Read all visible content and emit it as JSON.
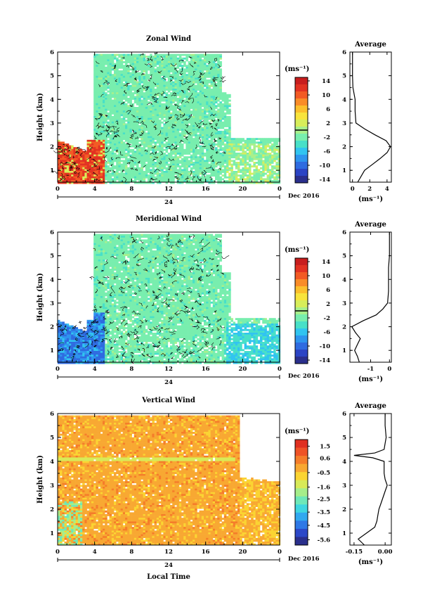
{
  "chart_data": [
    {
      "type": "heatmap",
      "title": "Zonal Wind",
      "xlabel": "",
      "ylabel": "Height (km)",
      "xlim": [
        0,
        24
      ],
      "ylim": [
        0.5,
        6
      ],
      "xticks": [
        "0",
        "4",
        "8",
        "12",
        "16",
        "20",
        "0"
      ],
      "yticks": [
        "1",
        "2",
        "3",
        "4",
        "5",
        "6"
      ],
      "date_axis": {
        "mid_label": "24",
        "right_label": "Dec 2016"
      },
      "colorbar": {
        "unit": "(ms⁻¹)",
        "range": [
          -15,
          15
        ],
        "ticks": [
          "14",
          "10",
          "6",
          "2",
          "-2",
          "-6",
          "-10",
          "-14"
        ],
        "tick_values": [
          14,
          10,
          6,
          2,
          -2,
          -6,
          -10,
          -14
        ]
      },
      "profile": {
        "title": "Average",
        "xlabel": "(ms⁻¹)",
        "xlim": [
          -0.3,
          4.5
        ],
        "xticks": [
          "0",
          "2",
          "4"
        ],
        "xtick_values": [
          0,
          2,
          4
        ],
        "yticks": [
          "1",
          "2",
          "3",
          "4",
          "5",
          "6"
        ],
        "height": [
          0.5,
          0.75,
          1.0,
          1.25,
          1.5,
          1.75,
          2.0,
          2.25,
          2.5,
          2.75,
          3.0,
          3.5,
          4.0,
          4.5,
          5.0,
          5.5,
          6.0
        ],
        "value": [
          0.6,
          1.0,
          1.4,
          2.3,
          3.2,
          4.0,
          4.4,
          3.9,
          2.6,
          1.4,
          0.4,
          0.3,
          0.3,
          0.05,
          0.0,
          0.0,
          0.0
        ]
      }
    },
    {
      "type": "heatmap",
      "title": "Meridional Wind",
      "xlabel": "",
      "ylabel": "Height (km)",
      "xlim": [
        0,
        24
      ],
      "ylim": [
        0.5,
        6
      ],
      "xticks": [
        "0",
        "4",
        "8",
        "12",
        "16",
        "20",
        "0"
      ],
      "yticks": [
        "1",
        "2",
        "3",
        "4",
        "5",
        "6"
      ],
      "date_axis": {
        "mid_label": "24",
        "right_label": "Dec 2016"
      },
      "colorbar": {
        "unit": "(ms⁻¹)",
        "range": [
          -15,
          15
        ],
        "ticks": [
          "14",
          "10",
          "6",
          "2",
          "-2",
          "-6",
          "-10",
          "-14"
        ],
        "tick_values": [
          14,
          10,
          6,
          2,
          -2,
          -6,
          -10,
          -14
        ]
      },
      "profile": {
        "title": "Average",
        "xlabel": "(ms⁻¹)",
        "xlim": [
          -2.1,
          0.1
        ],
        "xticks": [
          "-1",
          "0"
        ],
        "xtick_values": [
          -1,
          0
        ],
        "yticks": [
          "1",
          "2",
          "3",
          "4",
          "5",
          "6"
        ],
        "height": [
          0.5,
          0.75,
          1.0,
          1.25,
          1.5,
          1.75,
          2.0,
          2.25,
          2.5,
          2.75,
          3.0,
          3.5,
          4.0,
          4.5,
          5.0,
          5.5,
          6.0
        ],
        "value": [
          -1.6,
          -1.7,
          -1.85,
          -1.7,
          -1.55,
          -1.8,
          -2.0,
          -1.4,
          -0.7,
          -0.35,
          -0.1,
          -0.05,
          -0.05,
          -0.05,
          0.0,
          0.0,
          0.0
        ]
      }
    },
    {
      "type": "heatmap",
      "title": "Vertical Wind",
      "xlabel": "Local Time",
      "ylabel": "Height (km)",
      "xlim": [
        0,
        24
      ],
      "ylim": [
        0.5,
        6
      ],
      "xticks": [
        "0",
        "4",
        "8",
        "12",
        "16",
        "20",
        "0"
      ],
      "yticks": [
        "1",
        "2",
        "3",
        "4",
        "5",
        "6"
      ],
      "date_axis": {
        "mid_label": "24",
        "right_label": "Dec 2016"
      },
      "colorbar": {
        "unit": "(ms⁻¹)",
        "range": [
          -6,
          2
        ],
        "ticks": [
          "1.5",
          "0.6",
          "-0.5",
          "-1.6",
          "-2.5",
          "-3.5",
          "-4.5",
          "-5.6"
        ],
        "tick_values": [
          1.5,
          0.6,
          -0.5,
          -1.6,
          -2.5,
          -3.5,
          -4.5,
          -5.6
        ]
      },
      "profile": {
        "title": "Average",
        "xlabel": "(ms⁻¹)",
        "xlim": [
          -0.17,
          0.03
        ],
        "xticks": [
          "-0.15",
          "0.00"
        ],
        "xtick_values": [
          -0.15,
          0.0
        ],
        "yticks": [
          "1",
          "2",
          "3",
          "4",
          "5",
          "6"
        ],
        "height": [
          0.5,
          0.75,
          1.0,
          1.25,
          1.5,
          1.75,
          2.0,
          2.25,
          2.5,
          2.75,
          3.0,
          3.25,
          3.5,
          3.75,
          4.0,
          4.15,
          4.25,
          4.35,
          4.5,
          4.75,
          5.0,
          5.5,
          6.0
        ],
        "value": [
          -0.1,
          -0.13,
          -0.09,
          -0.05,
          -0.04,
          -0.035,
          -0.03,
          -0.02,
          -0.01,
          0.0,
          0.01,
          0.0,
          -0.005,
          -0.005,
          -0.005,
          -0.06,
          -0.15,
          -0.05,
          -0.005,
          0.0,
          0.005,
          0.0,
          0.0
        ]
      }
    }
  ]
}
